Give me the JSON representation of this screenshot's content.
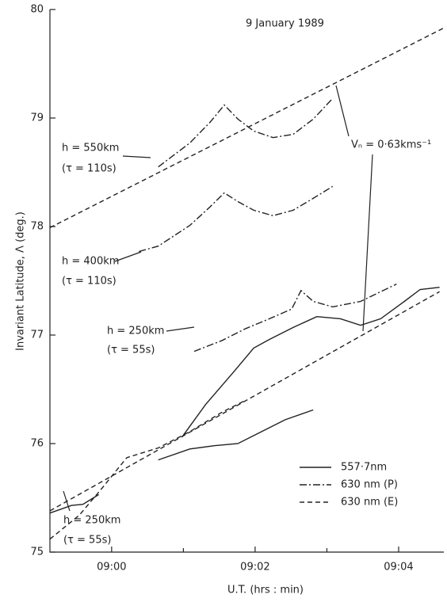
{
  "chart_data": {
    "type": "line",
    "title": "9 January 1989",
    "x_label": "U.T. (hrs : min)",
    "y_label": "Invariant Latitude, Λ (deg.)",
    "xlim": [
      -0.86,
      4.63
    ],
    "ylim": [
      75,
      80
    ],
    "xticks": [
      {
        "value": 0,
        "label": "09:00"
      },
      {
        "value": 2,
        "label": "09:02"
      },
      {
        "value": 4,
        "label": "09:04"
      }
    ],
    "xminorticks": [
      1,
      3
    ],
    "yticks": [
      75,
      76,
      77,
      78,
      79,
      80
    ],
    "grid": false,
    "legend": "lower right",
    "series": [
      {
        "name": "557·7nm",
        "color": "#222222",
        "style": "solid",
        "curves": [
          {
            "x": [
              0.98,
              1.31,
              1.7,
              1.98,
              2.2,
              2.53,
              2.86,
              3.19,
              3.47,
              3.75,
              4.08,
              4.3,
              4.57
            ],
            "values": [
              76.06,
              76.36,
              76.66,
              76.88,
              76.96,
              77.07,
              77.17,
              77.15,
              77.09,
              77.15,
              77.31,
              77.42,
              77.44
            ]
          },
          {
            "x": [
              0.65,
              1.09,
              1.43,
              1.76,
              2.09,
              2.42,
              2.81
            ],
            "values": [
              75.85,
              75.95,
              75.98,
              76.0,
              76.11,
              76.22,
              76.31
            ]
          },
          {
            "x": [
              -0.86,
              -0.56,
              -0.4,
              -0.18
            ],
            "values": [
              75.36,
              75.43,
              75.44,
              75.53
            ]
          }
        ]
      },
      {
        "name": "630 nm (P)",
        "color": "#222222",
        "style": "dashdot",
        "curves": [
          {
            "x": [
              0.65,
              1.09,
              1.37,
              1.57,
              1.76,
              1.98,
              2.25,
              2.53,
              2.81,
              3.08
            ],
            "values": [
              78.55,
              78.77,
              78.96,
              79.12,
              78.99,
              78.88,
              78.82,
              78.85,
              78.99,
              79.18
            ]
          },
          {
            "x": [
              0.38,
              0.65,
              1.09,
              1.37,
              1.57,
              1.76,
              1.98,
              2.25,
              2.53,
              2.81,
              3.08
            ],
            "values": [
              77.77,
              77.82,
              78.01,
              78.18,
              78.31,
              78.23,
              78.15,
              78.1,
              78.15,
              78.26,
              78.37
            ]
          },
          {
            "x": [
              1.15,
              1.54,
              1.87,
              2.2,
              2.51,
              2.64,
              2.81,
              3.08,
              3.47,
              3.97
            ],
            "values": [
              76.85,
              76.95,
              77.06,
              77.15,
              77.24,
              77.41,
              77.31,
              77.26,
              77.31,
              77.47
            ]
          }
        ]
      },
      {
        "name": "630 nm (E)",
        "color": "#222222",
        "style": "dashed",
        "curves": [
          {
            "x": [
              -0.86,
              4.63
            ],
            "values": [
              77.99,
              79.83
            ]
          },
          {
            "x": [
              -0.86,
              4.57
            ],
            "values": [
              75.38,
              77.4
            ]
          },
          {
            "x": [
              -0.86,
              -0.45,
              -0.12,
              0.21,
              0.65,
              1.09,
              1.54,
              1.87
            ],
            "values": [
              75.12,
              75.34,
              75.6,
              75.87,
              75.96,
              76.11,
              76.29,
              76.4
            ]
          }
        ]
      }
    ],
    "annotations": [
      "h = 550km",
      "(τ = 110s)",
      "h = 400km",
      "(τ = 110s)",
      "h = 250km",
      "(τ = 55s)",
      "Vₙ = 0·63kms⁻¹",
      "h = 250km",
      "(τ = 55s)"
    ]
  }
}
